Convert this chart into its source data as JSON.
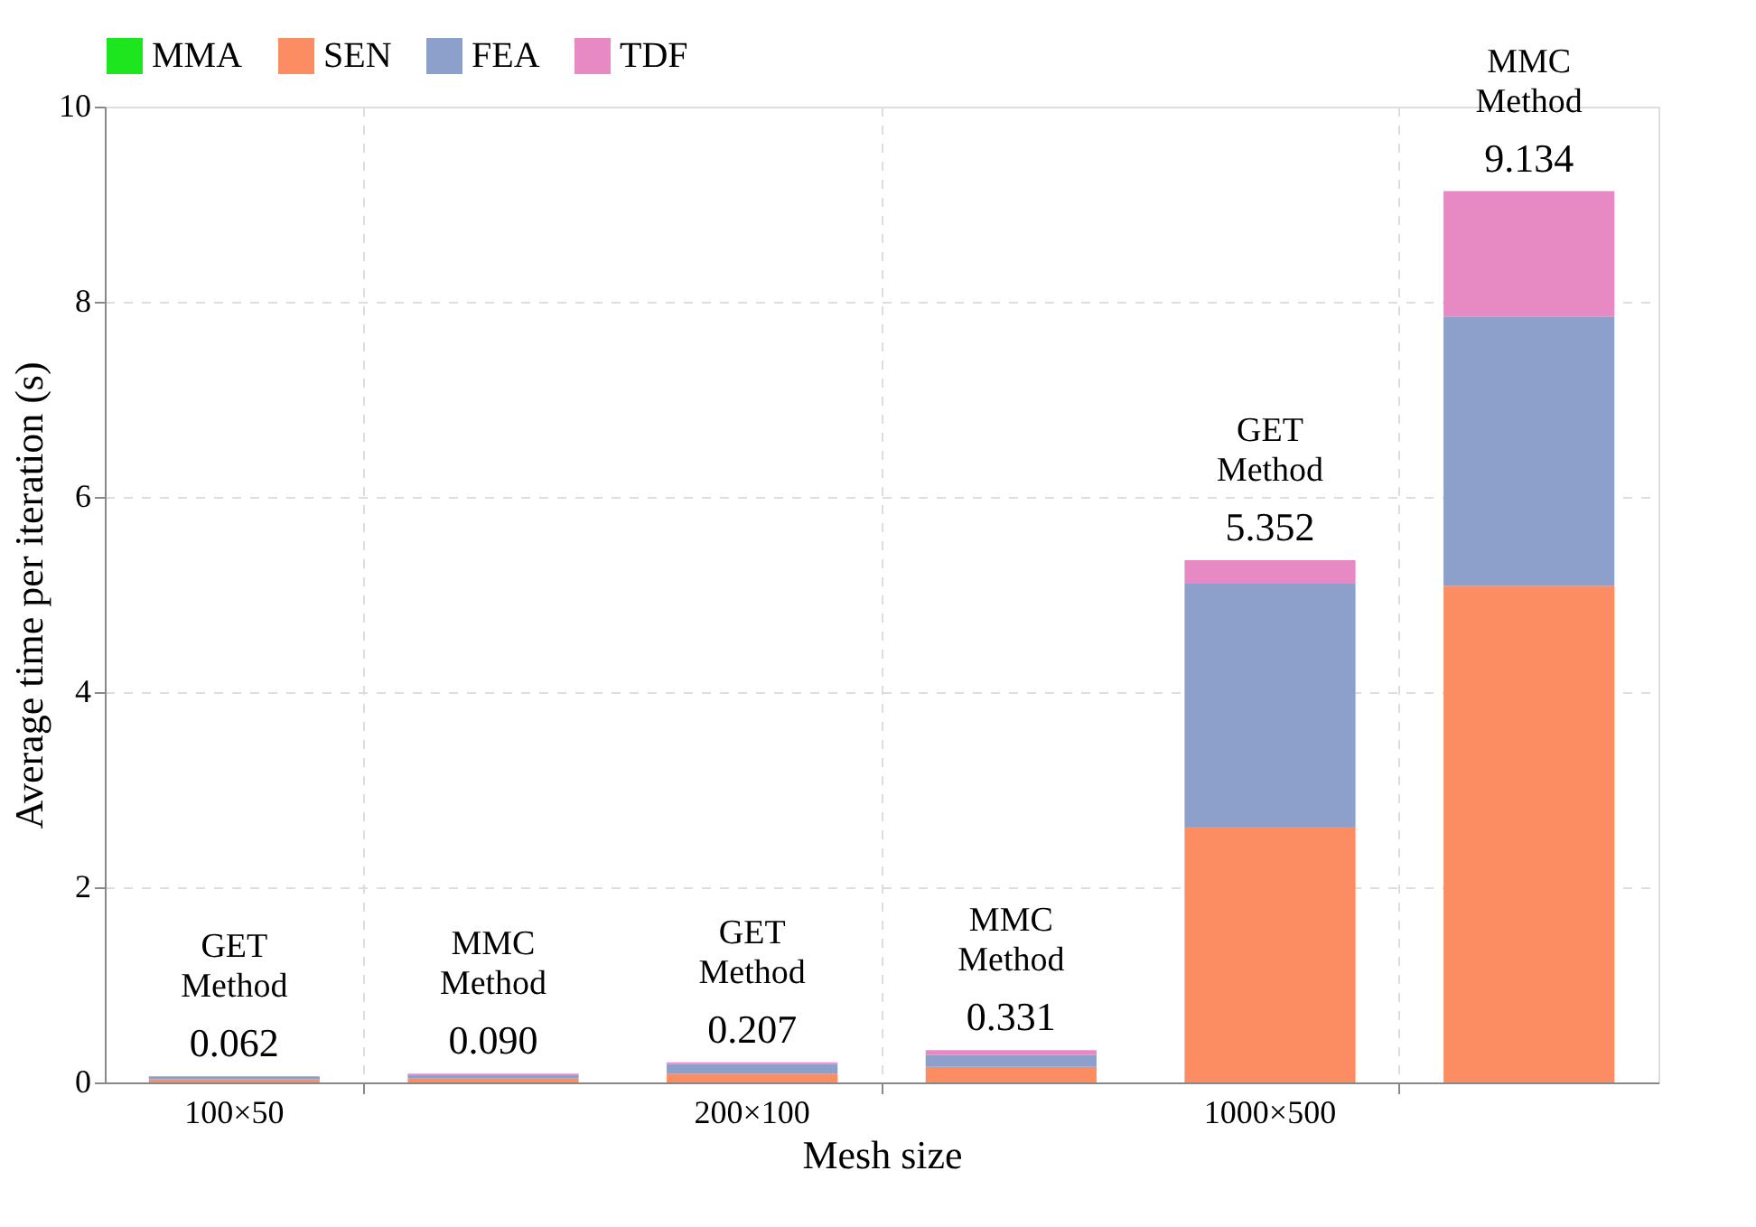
{
  "chart_data": {
    "type": "bar",
    "stacked": true,
    "xlabel": "Mesh size",
    "ylabel": "Average time per iteration (s)",
    "categories": [
      "100×50",
      null,
      "200×100",
      null,
      "1000×500",
      null
    ],
    "ylim": [
      0,
      10
    ],
    "yticks": [
      0,
      2,
      4,
      6,
      8,
      10
    ],
    "series": [
      {
        "name": "MMA",
        "color": "#1ee61e",
        "values": [
          0,
          0,
          0,
          0,
          0,
          0
        ]
      },
      {
        "name": "SEN",
        "color": "#fc8d62",
        "values": [
          0.032,
          0.04,
          0.09,
          0.16,
          2.62,
          5.09
        ]
      },
      {
        "name": "FEA",
        "color": "#8da0cb",
        "values": [
          0.03,
          0.04,
          0.1,
          0.12,
          2.49,
          2.76
        ]
      },
      {
        "name": "TDF",
        "color": "#e78ac3",
        "values": [
          0,
          0.01,
          0.017,
          0.051,
          0.242,
          1.284
        ]
      }
    ],
    "totals": [
      "0.062",
      "0.090",
      "0.207",
      "0.331",
      "5.352",
      "9.134"
    ],
    "annotations": [
      "GET Method",
      "MMC Method",
      "GET Method",
      "MMC Method",
      "GET Method",
      "MMC Method"
    ],
    "grid": true,
    "legend": "top"
  }
}
